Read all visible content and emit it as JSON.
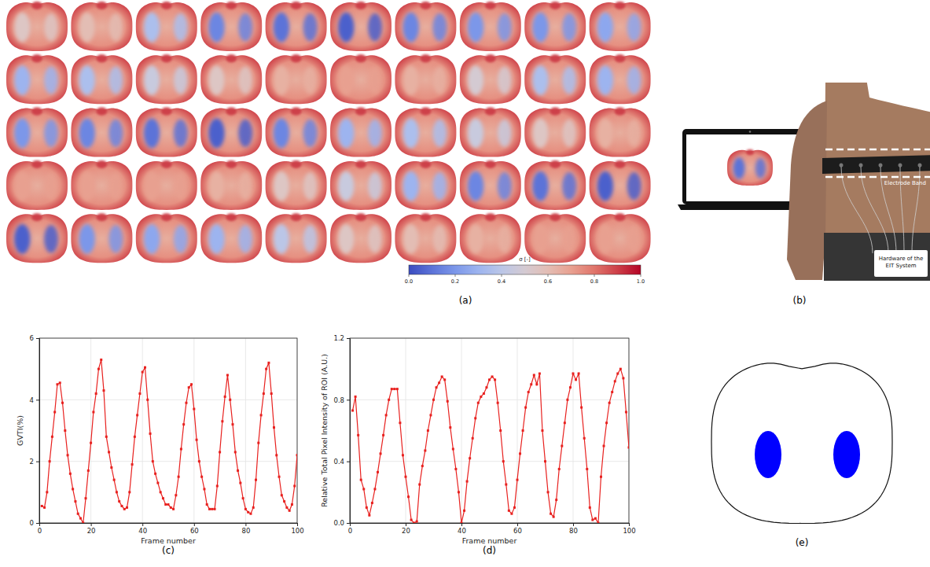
{
  "chart_data": [
    {
      "type": "heatmap",
      "panel": "(a)",
      "values": [
        0.55,
        0.6,
        0.35,
        0.15,
        0.1,
        0.05,
        0.15,
        0.2,
        0.2,
        0.25,
        0.3,
        0.35,
        0.45,
        0.55,
        0.65,
        0.7,
        0.65,
        0.5,
        0.35,
        0.3,
        0.2,
        0.15,
        0.1,
        0.05,
        0.15,
        0.3,
        0.35,
        0.45,
        0.55,
        0.65,
        0.7,
        0.7,
        0.7,
        0.65,
        0.55,
        0.45,
        0.3,
        0.15,
        0.1,
        0.05,
        0.05,
        0.2,
        0.25,
        0.3,
        0.4,
        0.55,
        0.6,
        0.65,
        0.7,
        0.7
      ],
      "colorbar": {
        "title": "σ [-]",
        "lim": [
          0,
          1
        ],
        "ticks": [
          {
            "value": 0,
            "label": "0.0"
          },
          {
            "value": 0.2,
            "label": "0.2"
          },
          {
            "value": 0.4,
            "label": "0.4"
          },
          {
            "value": 0.6,
            "label": "0.6"
          },
          {
            "value": 0.8,
            "label": "0.8"
          },
          {
            "value": 1,
            "label": "1.0"
          }
        ]
      }
    },
    {
      "type": "line",
      "panel": "(c)",
      "xlabel": "Frame number",
      "ylabel": "GVTI(%)",
      "color": "#e8211f",
      "marker": "square",
      "grid": true,
      "x": [
        1,
        2,
        3,
        4,
        5,
        6,
        7,
        8,
        9,
        10,
        11,
        12,
        13,
        14,
        15,
        16,
        17,
        18,
        19,
        20,
        21,
        22,
        23,
        24,
        25,
        26,
        27,
        28,
        29,
        30,
        31,
        32,
        33,
        34,
        35,
        36,
        37,
        38,
        39,
        40,
        41,
        42,
        43,
        44,
        45,
        46,
        47,
        48,
        49,
        50,
        51,
        52,
        53,
        54,
        55,
        56,
        57,
        58,
        59,
        60,
        61,
        62,
        63,
        64,
        65,
        66,
        67,
        68,
        69,
        70,
        71,
        72,
        73,
        74,
        75,
        76,
        77,
        78,
        79,
        80,
        81,
        82,
        83,
        84,
        85,
        86,
        87,
        88,
        89,
        90,
        91,
        92,
        93,
        94,
        95,
        96,
        97,
        98,
        99,
        100
      ],
      "values": [
        0.55,
        0.5,
        1.0,
        2.0,
        2.8,
        3.6,
        4.5,
        4.55,
        3.9,
        3.0,
        2.2,
        1.6,
        1.1,
        0.7,
        0.3,
        0.15,
        0.0,
        0.8,
        1.7,
        2.6,
        3.6,
        4.2,
        5.0,
        5.3,
        4.3,
        2.8,
        2.3,
        1.8,
        1.4,
        1.0,
        0.7,
        0.55,
        0.45,
        0.5,
        1.0,
        1.9,
        2.8,
        3.5,
        4.2,
        4.9,
        5.05,
        4.0,
        2.9,
        2.0,
        1.6,
        1.3,
        1.0,
        0.8,
        0.6,
        0.6,
        0.5,
        0.45,
        0.9,
        1.5,
        2.4,
        3.2,
        3.9,
        4.4,
        4.5,
        3.7,
        2.7,
        2.0,
        1.5,
        1.1,
        0.6,
        0.45,
        0.45,
        0.45,
        1.2,
        2.3,
        3.3,
        4.1,
        4.8,
        4.0,
        3.2,
        2.3,
        1.7,
        1.3,
        0.8,
        0.45,
        0.35,
        0.3,
        0.5,
        1.4,
        2.6,
        3.5,
        4.2,
        5.0,
        5.2,
        4.2,
        3.1,
        2.2,
        1.5,
        0.9,
        0.7,
        0.5,
        0.4,
        0.6,
        1.2,
        2.2
      ],
      "xlim": [
        0,
        100
      ],
      "xticks": [
        0,
        20,
        40,
        60,
        80,
        100
      ],
      "ylim": [
        0,
        6
      ],
      "yticks": [
        0,
        2,
        4,
        6
      ]
    },
    {
      "type": "line",
      "panel": "(d)",
      "xlabel": "Frame number",
      "ylabel": "Relative Total Pixel Intensity of ROI (A.U.)",
      "color": "#e8211f",
      "marker": "square",
      "grid": true,
      "x": [
        1,
        2,
        3,
        4,
        5,
        6,
        7,
        8,
        9,
        10,
        11,
        12,
        13,
        14,
        15,
        16,
        17,
        18,
        19,
        20,
        21,
        22,
        23,
        24,
        25,
        26,
        27,
        28,
        29,
        30,
        31,
        32,
        33,
        34,
        35,
        36,
        37,
        38,
        39,
        40,
        41,
        42,
        43,
        44,
        45,
        46,
        47,
        48,
        49,
        50,
        51,
        52,
        53,
        54,
        55,
        56,
        57,
        58,
        59,
        60,
        61,
        62,
        63,
        64,
        65,
        66,
        67,
        68,
        69,
        70,
        71,
        72,
        73,
        74,
        75,
        76,
        77,
        78,
        79,
        80,
        81,
        82,
        83,
        84,
        85,
        86,
        87,
        88,
        89,
        90,
        91,
        92,
        93,
        94,
        95,
        96,
        97,
        98,
        99,
        100
      ],
      "values": [
        0.73,
        0.82,
        0.57,
        0.28,
        0.22,
        0.1,
        0.05,
        0.13,
        0.22,
        0.33,
        0.45,
        0.57,
        0.7,
        0.8,
        0.87,
        0.87,
        0.87,
        0.65,
        0.44,
        0.3,
        0.17,
        0.02,
        0.0,
        0.01,
        0.25,
        0.37,
        0.47,
        0.6,
        0.7,
        0.8,
        0.88,
        0.91,
        0.95,
        0.93,
        0.79,
        0.62,
        0.48,
        0.35,
        0.2,
        0.0,
        0.08,
        0.27,
        0.42,
        0.55,
        0.68,
        0.78,
        0.82,
        0.84,
        0.88,
        0.93,
        0.95,
        0.93,
        0.78,
        0.6,
        0.4,
        0.25,
        0.08,
        0.06,
        0.1,
        0.28,
        0.45,
        0.6,
        0.75,
        0.85,
        0.9,
        0.96,
        0.9,
        0.97,
        0.6,
        0.4,
        0.2,
        0.06,
        0.04,
        0.15,
        0.35,
        0.5,
        0.65,
        0.8,
        0.88,
        0.97,
        0.93,
        0.97,
        0.75,
        0.55,
        0.35,
        0.1,
        0.02,
        0.03,
        0.0,
        0.3,
        0.5,
        0.65,
        0.78,
        0.85,
        0.92,
        0.97,
        1.0,
        0.94,
        0.72,
        0.49
      ],
      "xlim": [
        0,
        100
      ],
      "xticks": [
        0,
        20,
        40,
        60,
        80,
        100
      ],
      "ylim": [
        0,
        1.2
      ],
      "yticks": [
        {
          "value": 0,
          "label": "0.0"
        },
        {
          "value": 0.4,
          "label": "0.4"
        },
        {
          "value": 0.8,
          "label": "0.8"
        },
        {
          "value": 1.2,
          "label": "1.2"
        }
      ]
    }
  ],
  "figure": {
    "panel_b": {
      "label": "(b)",
      "annotations": [
        "Electrode Band",
        "Hardware of the EIT System"
      ]
    },
    "panel_e": {
      "label": "(e)"
    }
  }
}
